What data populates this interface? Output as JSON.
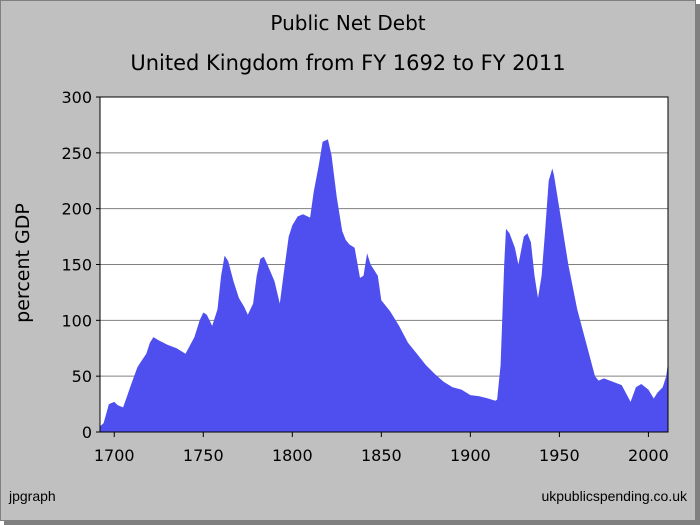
{
  "footer": {
    "left": "jpgraph",
    "right": "ukpublicspending.co.uk"
  },
  "colors": {
    "fill": "#4f4ff0",
    "plot_bg": "#ffffff",
    "frame_bg": "#c0c0c0",
    "grid": "#808080"
  },
  "chart_data": {
    "type": "area",
    "title": "Public Net Debt",
    "subtitle": "United Kingdom from FY 1692 to FY 2011",
    "xlabel": "",
    "ylabel": "percent GDP",
    "xlim": [
      1692,
      2011
    ],
    "ylim": [
      0,
      300
    ],
    "xticks": [
      1700,
      1750,
      1800,
      1850,
      1900,
      1950,
      2000
    ],
    "yticks": [
      0,
      50,
      100,
      150,
      200,
      250,
      300
    ],
    "grid": "horizontal",
    "legend": "none",
    "x": [
      1692,
      1694,
      1697,
      1700,
      1702,
      1705,
      1710,
      1713,
      1715,
      1718,
      1720,
      1722,
      1725,
      1730,
      1735,
      1740,
      1745,
      1748,
      1750,
      1752,
      1755,
      1758,
      1760,
      1762,
      1764,
      1767,
      1770,
      1773,
      1775,
      1778,
      1780,
      1782,
      1784,
      1786,
      1790,
      1793,
      1795,
      1798,
      1800,
      1803,
      1806,
      1810,
      1812,
      1815,
      1817,
      1820,
      1822,
      1825,
      1828,
      1830,
      1832,
      1835,
      1838,
      1840,
      1842,
      1844,
      1846,
      1848,
      1850,
      1855,
      1860,
      1865,
      1870,
      1875,
      1880,
      1885,
      1890,
      1895,
      1900,
      1905,
      1910,
      1914,
      1915,
      1917,
      1919,
      1920,
      1922,
      1925,
      1927,
      1930,
      1932,
      1934,
      1936,
      1938,
      1940,
      1942,
      1944,
      1946,
      1947,
      1950,
      1955,
      1960,
      1965,
      1970,
      1972,
      1975,
      1980,
      1985,
      1990,
      1993,
      1996,
      2000,
      2003,
      2005,
      2008,
      2010,
      2011
    ],
    "y": [
      5,
      8,
      25,
      27,
      24,
      22,
      45,
      58,
      63,
      70,
      80,
      85,
      82,
      78,
      75,
      70,
      85,
      100,
      107,
      105,
      95,
      110,
      140,
      158,
      153,
      135,
      120,
      112,
      105,
      115,
      140,
      155,
      157,
      150,
      135,
      115,
      140,
      175,
      185,
      193,
      195,
      192,
      215,
      240,
      260,
      262,
      248,
      210,
      180,
      172,
      168,
      165,
      138,
      140,
      160,
      150,
      145,
      140,
      118,
      108,
      95,
      80,
      70,
      60,
      52,
      45,
      40,
      38,
      33,
      32,
      30,
      28,
      29,
      60,
      150,
      182,
      178,
      165,
      150,
      175,
      178,
      170,
      140,
      120,
      140,
      180,
      225,
      236,
      230,
      200,
      150,
      110,
      80,
      50,
      46,
      48,
      45,
      42,
      27,
      40,
      43,
      38,
      30,
      35,
      40,
      50,
      62
    ]
  }
}
